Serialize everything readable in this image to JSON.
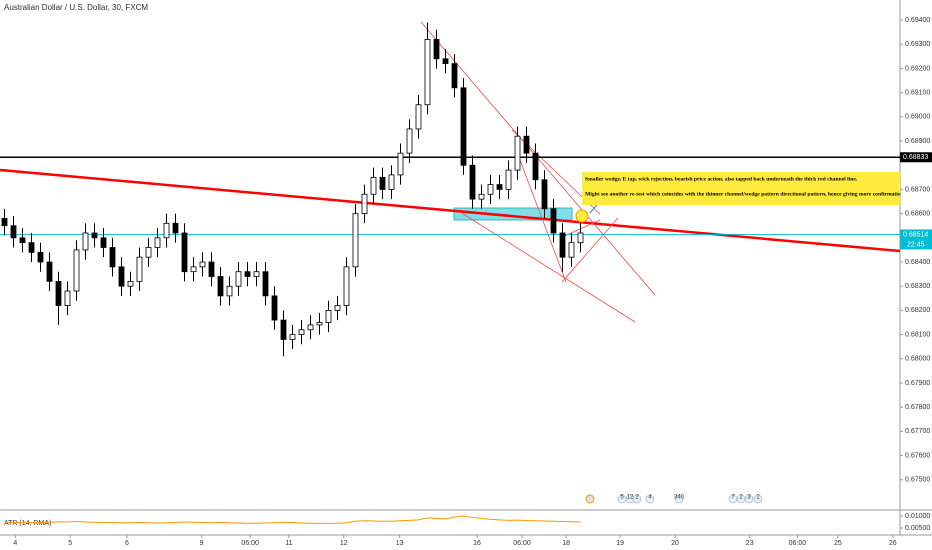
{
  "chart_data": {
    "type": "candlestick",
    "title": "Australian Dollar / U.S. Dollar, 30, FXCM",
    "color": "#000000",
    "x": [
      0,
      1,
      2,
      3,
      4,
      5,
      6,
      7,
      8,
      9,
      10,
      11,
      12,
      13,
      14,
      15,
      16,
      17,
      18,
      19,
      20,
      21,
      22,
      23,
      24,
      25,
      26,
      27,
      28,
      29,
      30,
      31,
      32,
      33,
      34,
      35,
      36,
      37,
      38,
      39,
      40,
      41,
      42,
      43,
      44,
      45,
      46,
      47,
      48,
      49,
      50,
      51,
      52,
      53,
      54,
      55,
      56,
      57,
      58,
      59,
      60,
      61,
      62,
      63,
      64
    ],
    "open": [
      0.6858,
      0.6855,
      0.685,
      0.6848,
      0.6844,
      0.684,
      0.6832,
      0.6822,
      0.6828,
      0.6845,
      0.6852,
      0.685,
      0.6846,
      0.6838,
      0.683,
      0.6832,
      0.6842,
      0.6846,
      0.685,
      0.6856,
      0.6852,
      0.6836,
      0.6838,
      0.684,
      0.6834,
      0.6826,
      0.683,
      0.6836,
      0.6834,
      0.6836,
      0.6826,
      0.6816,
      0.6808,
      0.681,
      0.6812,
      0.6814,
      0.6815,
      0.682,
      0.6822,
      0.6838,
      0.686,
      0.6868,
      0.6875,
      0.687,
      0.6876,
      0.6885,
      0.6895,
      0.6905,
      0.6932,
      0.6924,
      0.6922,
      0.6912,
      0.688,
      0.6866,
      0.6868,
      0.6872,
      0.687,
      0.6878,
      0.6892,
      0.6885,
      0.6874,
      0.6862,
      0.6852,
      0.6842,
      0.6848
    ],
    "high": [
      0.6862,
      0.6859,
      0.6854,
      0.6852,
      0.6848,
      0.6844,
      0.6836,
      0.6832,
      0.6849,
      0.6856,
      0.6856,
      0.6854,
      0.685,
      0.6842,
      0.6836,
      0.6846,
      0.685,
      0.6854,
      0.686,
      0.686,
      0.6856,
      0.6842,
      0.6844,
      0.6844,
      0.6838,
      0.6834,
      0.684,
      0.684,
      0.684,
      0.684,
      0.683,
      0.682,
      0.6814,
      0.6816,
      0.6818,
      0.6819,
      0.6824,
      0.6826,
      0.6842,
      0.6864,
      0.6872,
      0.6879,
      0.6879,
      0.688,
      0.6889,
      0.6899,
      0.6909,
      0.6939,
      0.6936,
      0.6928,
      0.6926,
      0.6916,
      0.6884,
      0.6872,
      0.6876,
      0.6876,
      0.6882,
      0.6896,
      0.6896,
      0.6889,
      0.6878,
      0.6866,
      0.6856,
      0.6852,
      0.6856
    ],
    "low": [
      0.6851,
      0.6846,
      0.6844,
      0.684,
      0.6836,
      0.6828,
      0.6814,
      0.6818,
      0.6824,
      0.6841,
      0.6846,
      0.6842,
      0.6834,
      0.6826,
      0.6826,
      0.6828,
      0.6838,
      0.6842,
      0.6846,
      0.6848,
      0.6832,
      0.6832,
      0.6834,
      0.683,
      0.6822,
      0.6822,
      0.6826,
      0.683,
      0.683,
      0.6822,
      0.6812,
      0.6801,
      0.6804,
      0.6806,
      0.6808,
      0.681,
      0.6811,
      0.6816,
      0.6818,
      0.6834,
      0.6856,
      0.6864,
      0.6866,
      0.6866,
      0.6872,
      0.6881,
      0.6891,
      0.6901,
      0.692,
      0.6918,
      0.6908,
      0.6876,
      0.6862,
      0.6862,
      0.6864,
      0.6866,
      0.6866,
      0.6874,
      0.6881,
      0.687,
      0.6858,
      0.6848,
      0.6836,
      0.6838,
      0.6844
    ],
    "close": [
      0.6855,
      0.685,
      0.6848,
      0.6844,
      0.684,
      0.6832,
      0.6822,
      0.6828,
      0.6845,
      0.6852,
      0.685,
      0.6846,
      0.6838,
      0.683,
      0.6832,
      0.6842,
      0.6846,
      0.685,
      0.6856,
      0.6852,
      0.6836,
      0.6838,
      0.684,
      0.6834,
      0.6826,
      0.683,
      0.6836,
      0.6834,
      0.6836,
      0.6826,
      0.6816,
      0.6808,
      0.681,
      0.6812,
      0.6814,
      0.6815,
      0.682,
      0.6822,
      0.6838,
      0.686,
      0.6868,
      0.6875,
      0.687,
      0.6876,
      0.6885,
      0.6895,
      0.6905,
      0.6932,
      0.6924,
      0.6922,
      0.6912,
      0.688,
      0.6866,
      0.6868,
      0.6872,
      0.687,
      0.6878,
      0.6892,
      0.6885,
      0.6874,
      0.6862,
      0.6852,
      0.6842,
      0.6848,
      0.6852
    ],
    "xlim": [
      -0.5,
      99.5
    ],
    "xticks": [
      {
        "value": 1.2,
        "label": "4"
      },
      {
        "value": 7.3,
        "label": "5"
      },
      {
        "value": 13.6,
        "label": "6"
      },
      {
        "value": 21.9,
        "label": "9"
      },
      {
        "value": 27.3,
        "label": "06:00"
      },
      {
        "value": 31.6,
        "label": "11"
      },
      {
        "value": 37.7,
        "label": "12"
      },
      {
        "value": 43.9,
        "label": "13"
      },
      {
        "value": 52.5,
        "label": "16"
      },
      {
        "value": 57.5,
        "label": "06:00"
      },
      {
        "value": 62.4,
        "label": "18"
      },
      {
        "value": 68.4,
        "label": "19"
      },
      {
        "value": 74.5,
        "label": "20"
      },
      {
        "value": 82.8,
        "label": "23"
      },
      {
        "value": 88.1,
        "label": "06:00"
      },
      {
        "value": 92.6,
        "label": "25"
      },
      {
        "value": 98.7,
        "label": "26"
      }
    ],
    "ylim": [
      0.67375,
      0.69483
    ],
    "yticks": [
      {
        "value": 0.675,
        "label": "0.67500"
      },
      {
        "value": 0.676,
        "label": "0.67600"
      },
      {
        "value": 0.677,
        "label": "0.67700"
      },
      {
        "value": 0.678,
        "label": "0.67800"
      },
      {
        "value": 0.679,
        "label": "0.67900"
      },
      {
        "value": 0.68,
        "label": "0.68000"
      },
      {
        "value": 0.681,
        "label": "0.68100"
      },
      {
        "value": 0.682,
        "label": "0.68200"
      },
      {
        "value": 0.683,
        "label": "0.68300"
      },
      {
        "value": 0.684,
        "label": "0.68400"
      },
      {
        "value": 0.686,
        "label": "0.68600"
      },
      {
        "value": 0.687,
        "label": "0.68700"
      },
      {
        "value": 0.689,
        "label": "0.68900"
      },
      {
        "value": 0.69,
        "label": "0.69000"
      },
      {
        "value": 0.691,
        "label": "0.69100"
      },
      {
        "value": 0.692,
        "label": "0.69200"
      },
      {
        "value": 0.693,
        "label": "0.69300"
      },
      {
        "value": 0.694,
        "label": "0.69400"
      }
    ],
    "price_lines": [
      {
        "value": 0.68833,
        "label": "0.68833",
        "color": "#000000"
      },
      {
        "value": 0.68514,
        "label": "0.68514",
        "time_label": "22:45",
        "color": "#00bcd4"
      }
    ],
    "annotation": [
      "Smaller wedge, E tap, wick rejection, bearish price action, also tapped back underneath the thick red channel line.",
      "Might see another re-test which coincides with the thinner channel/wedge pattern directional pattern, hence giving more confirmatio"
    ],
    "events": [
      "5",
      "12",
      "2",
      "4",
      "340",
      "7",
      "2",
      "3",
      "2"
    ],
    "indicator": {
      "name": "ATR (14, RMA)",
      "color": "#ff9800",
      "values": [
        0.0074,
        0.0073,
        0.0072,
        0.0073,
        0.0072,
        0.0074,
        0.0076,
        0.0075,
        0.0077,
        0.0075,
        0.0074,
        0.0073,
        0.0073,
        0.0072,
        0.0072,
        0.0073,
        0.0072,
        0.0071,
        0.0072,
        0.0073,
        0.0075,
        0.0074,
        0.0073,
        0.0072,
        0.0073,
        0.0072,
        0.0071,
        0.007,
        0.007,
        0.0071,
        0.0072,
        0.0074,
        0.0073,
        0.0071,
        0.007,
        0.0069,
        0.0069,
        0.007,
        0.0072,
        0.0078,
        0.008,
        0.0079,
        0.0078,
        0.0078,
        0.008,
        0.0082,
        0.0084,
        0.0092,
        0.009,
        0.0088,
        0.0096,
        0.01,
        0.0094,
        0.009,
        0.0086,
        0.0084,
        0.0082,
        0.0083,
        0.0081,
        0.008,
        0.0079,
        0.0078,
        0.0077,
        0.0076,
        0.0075
      ],
      "ylim": [
        0.00208,
        0.0125
      ],
      "yticks": [
        {
          "value": 0.005,
          "label": "0.00500"
        },
        {
          "value": 0.01,
          "label": "0.01000"
        }
      ]
    }
  }
}
